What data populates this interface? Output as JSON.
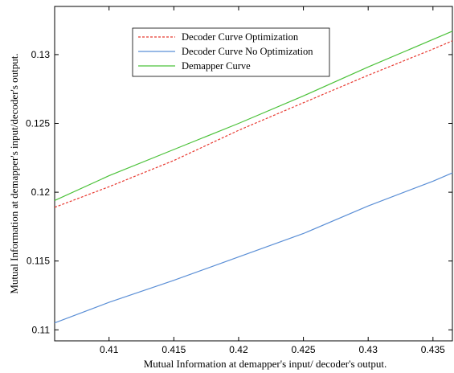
{
  "chart_data": {
    "type": "line",
    "title": "",
    "xlabel": "Mutual Information at demapper's input/ decoder's output.",
    "ylabel": "Mutual Information at demapper's input/decoder's output.",
    "xlim": [
      0.4058,
      0.4365
    ],
    "ylim": [
      0.1092,
      0.1335
    ],
    "xticks": [
      0.41,
      0.415,
      0.42,
      0.425,
      0.43,
      0.435
    ],
    "xtick_labels": [
      "0.41",
      "0.415",
      "0.42",
      "0.425",
      "0.43",
      "0.435"
    ],
    "yticks": [
      0.11,
      0.115,
      0.12,
      0.125,
      0.13
    ],
    "ytick_labels": [
      "0.11",
      "0.115",
      "0.12",
      "0.125",
      "0.13"
    ],
    "grid": false,
    "legend_position": "top-center",
    "series": [
      {
        "name": "Decoder Curve Optimization",
        "color": "#e8382f",
        "dash": "dashed",
        "x": [
          0.4058,
          0.41,
          0.415,
          0.42,
          0.425,
          0.43,
          0.435,
          0.4365
        ],
        "y": [
          0.1189,
          0.1204,
          0.1223,
          0.1245,
          0.1265,
          0.1285,
          0.1304,
          0.131
        ]
      },
      {
        "name": "Decoder Curve No Optimization",
        "color": "#5b8fd6",
        "dash": "solid",
        "x": [
          0.4058,
          0.41,
          0.415,
          0.42,
          0.425,
          0.43,
          0.435,
          0.4365
        ],
        "y": [
          0.1105,
          0.112,
          0.1136,
          0.1153,
          0.117,
          0.119,
          0.1208,
          0.1214
        ]
      },
      {
        "name": "Demapper Curve",
        "color": "#4cc23a",
        "dash": "solid",
        "x": [
          0.4058,
          0.41,
          0.415,
          0.42,
          0.425,
          0.43,
          0.435,
          0.4365
        ],
        "y": [
          0.1194,
          0.1212,
          0.1231,
          0.125,
          0.127,
          0.1291,
          0.1311,
          0.1317
        ]
      }
    ]
  }
}
